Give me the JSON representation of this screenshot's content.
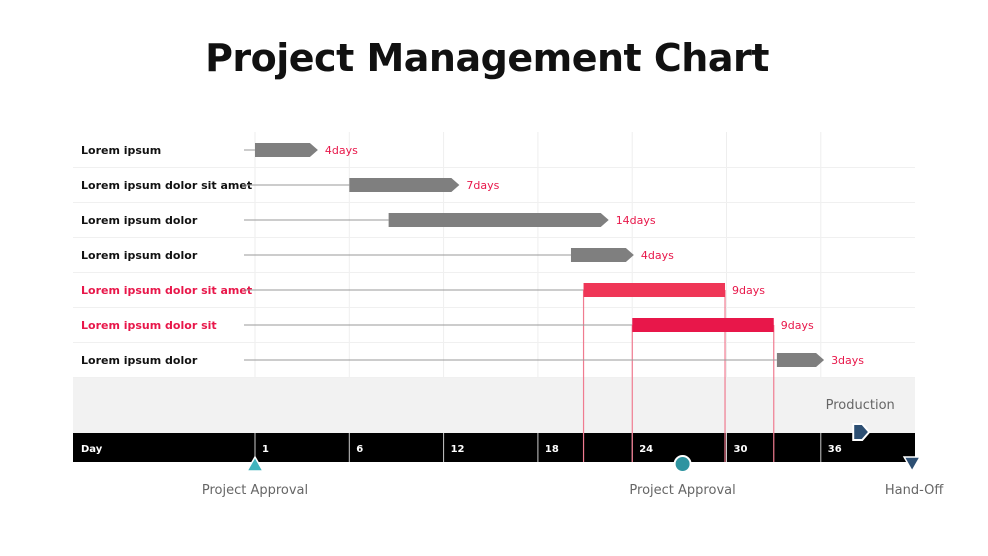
{
  "chart_data": {
    "type": "gantt",
    "title": "Project Management Chart",
    "axis_label": "Day",
    "ticks": [
      "1",
      "6",
      "12",
      "18",
      "24",
      "30",
      "36"
    ],
    "tasks": [
      {
        "label": "Lorem ipsum",
        "start": 0,
        "duration": 4,
        "duration_label": "4days",
        "highlight": false
      },
      {
        "label": "Lorem ipsum dolor sit amet",
        "start": 6,
        "duration": 7,
        "duration_label": "7days",
        "highlight": false
      },
      {
        "label": "Lorem ipsum dolor",
        "start": 8.5,
        "duration": 14,
        "duration_label": "14days",
        "highlight": false
      },
      {
        "label": "Lorem ipsum dolor",
        "start": 20.1,
        "duration": 4,
        "duration_label": "4days",
        "highlight": false
      },
      {
        "label": "Lorem ipsum dolor sit amet",
        "start": 20.9,
        "duration": 9,
        "duration_label": "9days",
        "highlight": true,
        "color": "#ef3657"
      },
      {
        "label": "Lorem ipsum dolor sit",
        "start": 24,
        "duration": 9,
        "duration_label": "9days",
        "highlight": true,
        "color": "#e8174a"
      },
      {
        "label": "Lorem ipsum dolor",
        "start": 33.2,
        "duration": 3,
        "duration_label": "3days",
        "highlight": false
      }
    ],
    "milestones": [
      {
        "label": "Project Approval",
        "day": 0,
        "shape": "triangle-up",
        "color": "#3fb4bd",
        "position": "below"
      },
      {
        "label": "Project Approval",
        "day": 27.2,
        "shape": "circle",
        "color": "#2f94a0",
        "position": "below"
      },
      {
        "label": "Production",
        "day": 38.5,
        "shape": "pentagon-right",
        "color": "#2d4f73",
        "position": "above"
      },
      {
        "label": "Hand-Off",
        "day": 41.8,
        "shape": "triangle-down",
        "color": "#2d4f73",
        "position": "below"
      }
    ],
    "colors": {
      "bar": "#7f7f7f",
      "accent": "#e8174a",
      "duration_text": "#e8174a",
      "axis_band": "#000000",
      "phase_band": "#f2f2f2"
    }
  }
}
